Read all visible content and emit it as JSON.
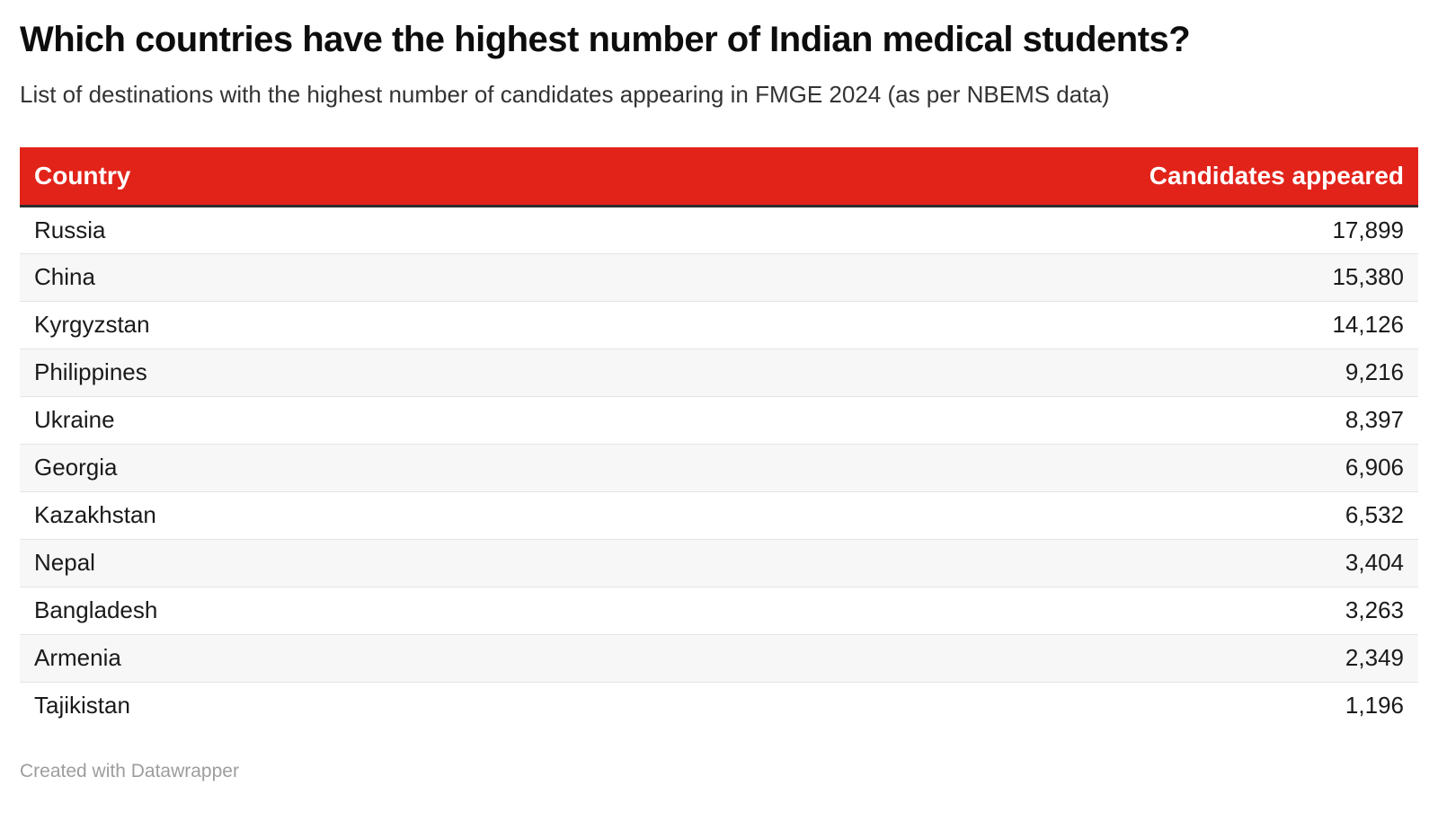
{
  "page": {
    "title": "Which countries have the highest number of Indian medical students?",
    "subtitle": "List of destinations with the highest number of candidates appearing in FMGE 2024 (as per NBEMS data)",
    "footer": "Created with Datawrapper"
  },
  "table": {
    "columns": {
      "country": "Country",
      "value": "Candidates appeared"
    },
    "rows": [
      {
        "country": "Russia",
        "value": "17,899"
      },
      {
        "country": "China",
        "value": "15,380"
      },
      {
        "country": "Kyrgyzstan",
        "value": "14,126"
      },
      {
        "country": "Philippines",
        "value": "9,216"
      },
      {
        "country": "Ukraine",
        "value": "8,397"
      },
      {
        "country": "Georgia",
        "value": "6,906"
      },
      {
        "country": "Kazakhstan",
        "value": "6,532"
      },
      {
        "country": "Nepal",
        "value": "3,404"
      },
      {
        "country": "Bangladesh",
        "value": "3,263"
      },
      {
        "country": "Armenia",
        "value": "2,349"
      },
      {
        "country": "Tajikistan",
        "value": "1,196"
      }
    ]
  },
  "colors": {
    "header_bg": "#e2231a",
    "header_text": "#ffffff",
    "header_border": "#2e2e2e",
    "row_alt_bg": "#f7f7f7",
    "row_border": "#e4e4e4",
    "text": "#1a1a1a",
    "footer_text": "#9d9d9d"
  },
  "chart_data": {
    "type": "table",
    "title": "Which countries have the highest number of Indian medical students?",
    "subtitle": "List of destinations with the highest number of candidates appearing in FMGE 2024 (as per NBEMS data)",
    "columns": [
      "Country",
      "Candidates appeared"
    ],
    "categories": [
      "Russia",
      "China",
      "Kyrgyzstan",
      "Philippines",
      "Ukraine",
      "Georgia",
      "Kazakhstan",
      "Nepal",
      "Bangladesh",
      "Armenia",
      "Tajikistan"
    ],
    "values": [
      17899,
      15380,
      14126,
      9216,
      8397,
      6906,
      6532,
      3404,
      3263,
      2349,
      1196
    ],
    "legend_position": "none",
    "grid": false,
    "footer": "Created with Datawrapper"
  }
}
